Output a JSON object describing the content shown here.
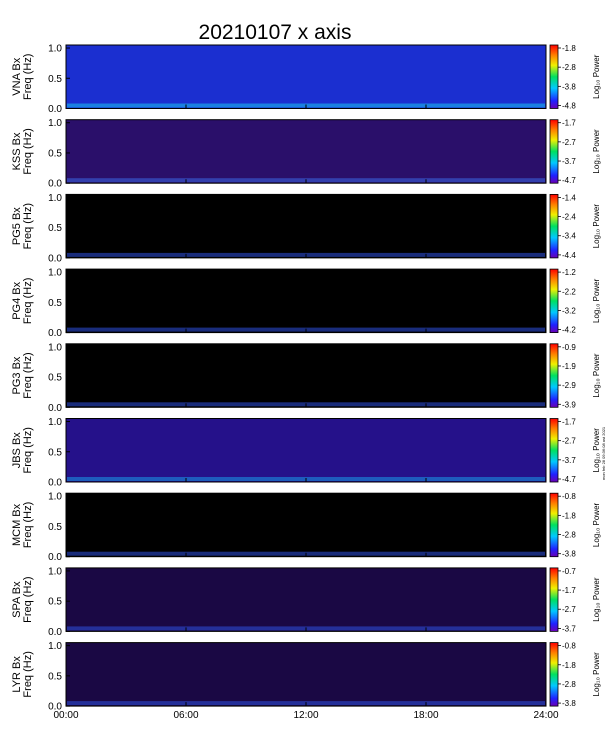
{
  "chart_data": {
    "type": "heatmap",
    "title": "20210107 x axis",
    "x_tick_labels": [
      "00:00",
      "06:00",
      "12:00",
      "18:00",
      "24:00"
    ],
    "x_ticks_hours": [
      0,
      6,
      12,
      18,
      24
    ],
    "xlim_hours": [
      0,
      24
    ],
    "colorbar_label": "Log₁₀ Power",
    "stamp": "mon feb 28 09:36:08 ast 2021",
    "y_tick_labels": [
      "0.0",
      "0.5",
      "1.0"
    ],
    "y_ticks": [
      0.0,
      0.5,
      1.0
    ],
    "ylim": [
      0,
      1.05
    ],
    "panels": [
      {
        "station": "VNA",
        "ylabel": [
          "VNA Bx",
          "Freq (Hz)"
        ],
        "cbar_ticks": [
          "-1.8",
          "-2.8",
          "-3.8",
          "-4.8"
        ],
        "colors": {
          "bg": "#1b2fd0",
          "hi": "#19c2ee"
        }
      },
      {
        "station": "KSS",
        "ylabel": [
          "KSS Bx",
          "Freq (Hz)"
        ],
        "cbar_ticks": [
          "-1.7",
          "-2.7",
          "-3.7",
          "-4.7"
        ],
        "colors": {
          "bg": "#2a0f6a",
          "hi": "#3a68e6"
        }
      },
      {
        "station": "PG5",
        "ylabel": [
          "PG5 Bx",
          "Freq (Hz)"
        ],
        "cbar_ticks": [
          "-1.4",
          "-2.4",
          "-3.4",
          "-4.4"
        ],
        "colors": {
          "bg": "#000000",
          "hi": "#2d50e0"
        }
      },
      {
        "station": "PG4",
        "ylabel": [
          "PG4 Bx",
          "Freq (Hz)"
        ],
        "cbar_ticks": [
          "-1.2",
          "-2.2",
          "-3.2",
          "-4.2"
        ],
        "colors": {
          "bg": "#000000",
          "hi": "#2d50e0"
        }
      },
      {
        "station": "PG3",
        "ylabel": [
          "PG3 Bx",
          "Freq (Hz)"
        ],
        "cbar_ticks": [
          "-0.9",
          "-1.9",
          "-2.9",
          "-3.9"
        ],
        "colors": {
          "bg": "#000000",
          "hi": "#2d50e0"
        }
      },
      {
        "station": "JBS",
        "ylabel": [
          "JBS Bx",
          "Freq (Hz)"
        ],
        "cbar_ticks": [
          "-1.7",
          "-2.7",
          "-3.7",
          "-4.7"
        ],
        "colors": {
          "bg": "#25118a",
          "hi": "#1a9ae8"
        }
      },
      {
        "station": "MCM",
        "ylabel": [
          "MCM Bx",
          "Freq (Hz)"
        ],
        "cbar_ticks": [
          "-0.8",
          "-1.8",
          "-2.8",
          "-3.8"
        ],
        "colors": {
          "bg": "#000000",
          "hi": "#2d50e0"
        }
      },
      {
        "station": "SPA",
        "ylabel": [
          "SPA Bx",
          "Freq (Hz)"
        ],
        "cbar_ticks": [
          "-0.7",
          "-1.7",
          "-2.7",
          "-3.7"
        ],
        "colors": {
          "bg": "#1a0844",
          "hi": "#2d50e0"
        }
      },
      {
        "station": "LYR",
        "ylabel": [
          "LYR Bx",
          "Freq (Hz)"
        ],
        "cbar_ticks": [
          "-0.8",
          "-1.8",
          "-2.8",
          "-3.8"
        ],
        "colors": {
          "bg": "#1a0844",
          "hi": "#2d50e0"
        }
      }
    ]
  }
}
